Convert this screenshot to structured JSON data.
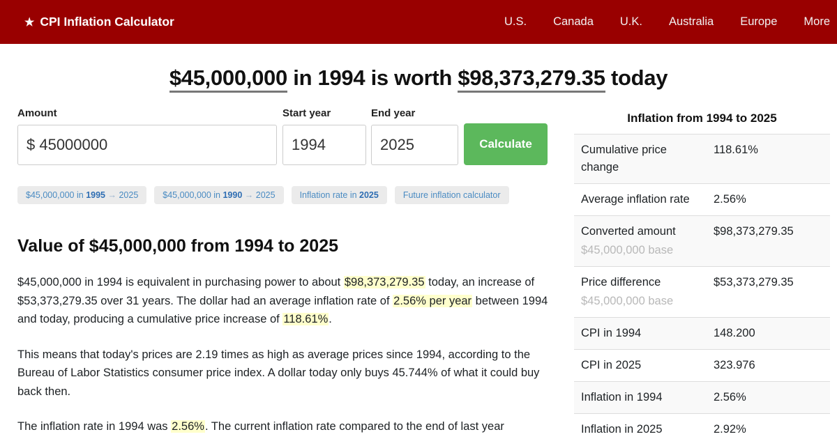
{
  "header": {
    "star": "★",
    "brand": "CPI Inflation Calculator",
    "nav": [
      {
        "label": "U.S."
      },
      {
        "label": "Canada"
      },
      {
        "label": "U.K."
      },
      {
        "label": "Australia"
      },
      {
        "label": "Europe"
      },
      {
        "label": "More"
      }
    ]
  },
  "colors": {
    "header_bg": "#990000",
    "button_green": "#5cb85c",
    "highlight_yellow": "#ffffcc",
    "link_blue": "#4a8bc2"
  },
  "title": {
    "amount": "$45,000,000",
    "middle": " in 1994 is worth ",
    "result": "$98,373,279.35",
    "suffix": " today"
  },
  "form": {
    "amount_label": "Amount",
    "amount_value": "$ 45000000",
    "start_year_label": "Start year",
    "start_year_value": "1994",
    "end_year_label": "End year",
    "end_year_value": "2025",
    "calculate_label": "Calculate"
  },
  "related_links": [
    {
      "prefix": "$45,000,000 in ",
      "year": "1995",
      "arrow": " → ",
      "suffix": "2025"
    },
    {
      "prefix": "$45,000,000 in ",
      "year": "1990",
      "arrow": " → ",
      "suffix": "2025"
    },
    {
      "prefix": "Inflation rate in ",
      "year": "2025",
      "arrow": "",
      "suffix": ""
    },
    {
      "prefix": "Future inflation calculator",
      "year": "",
      "arrow": "",
      "suffix": ""
    }
  ],
  "article": {
    "heading": "Value of $45,000,000 from 1994 to 2025",
    "p1": {
      "s1": "$45,000,000 in 1994 is equivalent in purchasing power to about ",
      "h1": "$98,373,279.35",
      "s2": " today, an increase of $53,373,279.35 over 31 years. The dollar had an average inflation rate of ",
      "h2": "2.56% per year",
      "s3": " between 1994 and today, producing a cumulative price increase of ",
      "h3": "118.61%",
      "s4": "."
    },
    "p2": "This means that today's prices are 2.19 times as high as average prices since 1994, according to the Bureau of Labor Statistics consumer price index. A dollar today only buys 45.744% of what it could buy back then.",
    "p3": {
      "s1": "The inflation rate in 1994 was ",
      "h1": "2.56%",
      "s2": ". The current inflation rate compared to the end of last year"
    }
  },
  "summary_table": {
    "title": "Inflation from 1994 to 2025",
    "rows": [
      {
        "label": "Cumulative price change",
        "sub": "",
        "value": "118.61%"
      },
      {
        "label": "Average inflation rate",
        "sub": "",
        "value": "2.56%"
      },
      {
        "label": "Converted amount",
        "sub": "$45,000,000 base",
        "value": "$98,373,279.35"
      },
      {
        "label": "Price difference",
        "sub": "$45,000,000 base",
        "value": "$53,373,279.35"
      },
      {
        "label": "CPI in 1994",
        "sub": "",
        "value": "148.200"
      },
      {
        "label": "CPI in 2025",
        "sub": "",
        "value": "323.976"
      },
      {
        "label": "Inflation in 1994",
        "sub": "",
        "value": "2.56%"
      },
      {
        "label": "Inflation in 2025",
        "sub": "",
        "value": "2.92%"
      }
    ]
  }
}
